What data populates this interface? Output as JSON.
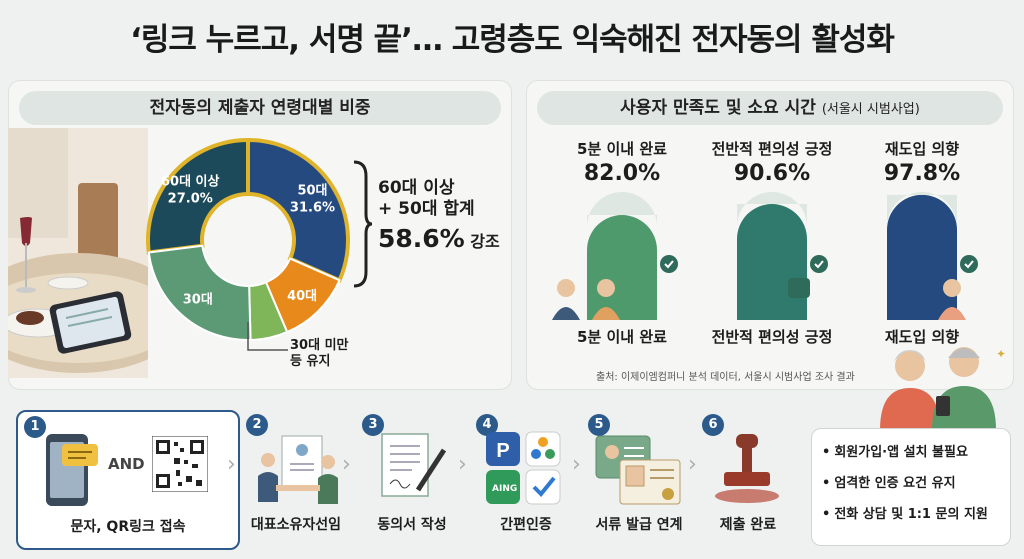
{
  "title": "‘링크 누르고, 서명 끝’… 고령층도 익숙해진 전자동의 활성화",
  "left_panel": {
    "heading": "전자동의 제출자 연령대별 비중",
    "brace_line1": "60대 이상",
    "brace_line2": "+ 50대 합계",
    "brace_line3": "58.6%",
    "brace_line3_suffix": " 강조",
    "under30_note_line1": "30대 미만",
    "under30_note_line2": "등 유지"
  },
  "right_panel": {
    "heading": "사용자 만족도 및 소요 시간",
    "heading_note": "(서울시 시범사업)",
    "source": "출처: 이제이엠컴퍼니 분석 데이터, 서울시 시범사업 조사 결과"
  },
  "chart_data": [
    {
      "type": "pie",
      "title": "전자동의 제출자 연령대별 비중",
      "slices": [
        {
          "label": "60대 이상",
          "value": 27.0,
          "display": "27.0%",
          "color": "#1d4a5a"
        },
        {
          "label": "50대",
          "value": 31.6,
          "display": "31.6%",
          "color": "#244a80"
        },
        {
          "label": "40대",
          "value": 12.0,
          "display": "",
          "color": "#e8891c"
        },
        {
          "label": "",
          "value": 6.0,
          "display": "",
          "color": "#7fb65a"
        },
        {
          "label": "30대",
          "value": 23.4,
          "display": "",
          "color": "#5b9a74"
        }
      ]
    },
    {
      "type": "bar",
      "title": "사용자 만족도 및 소요 시간",
      "categories": [
        "5분 이내 완료",
        "전반적 편의성 긍정",
        "재도입 의향"
      ],
      "values": [
        82.0,
        90.6,
        97.8
      ],
      "display": [
        "82.0%",
        "90.6%",
        "97.8%"
      ],
      "colors": [
        "#4f9a6c",
        "#2f7a6c",
        "#244a80"
      ],
      "ylim": [
        0,
        100
      ]
    }
  ],
  "steps": [
    {
      "num": "1",
      "label": "문자, QR링크 접속",
      "and_text": "AND"
    },
    {
      "num": "2",
      "label": "대표소유자선임"
    },
    {
      "num": "3",
      "label": "동의서 작성"
    },
    {
      "num": "4",
      "label": "간편인증",
      "app_text": "AING"
    },
    {
      "num": "5",
      "label": "서류 발급 연계"
    },
    {
      "num": "6",
      "label": "제출 완료"
    }
  ],
  "benefits": [
    "회원가입·앱 설치 불필요",
    "엄격한 인증 요건 유지",
    "전화 상담 및 1:1 문의 지원"
  ]
}
